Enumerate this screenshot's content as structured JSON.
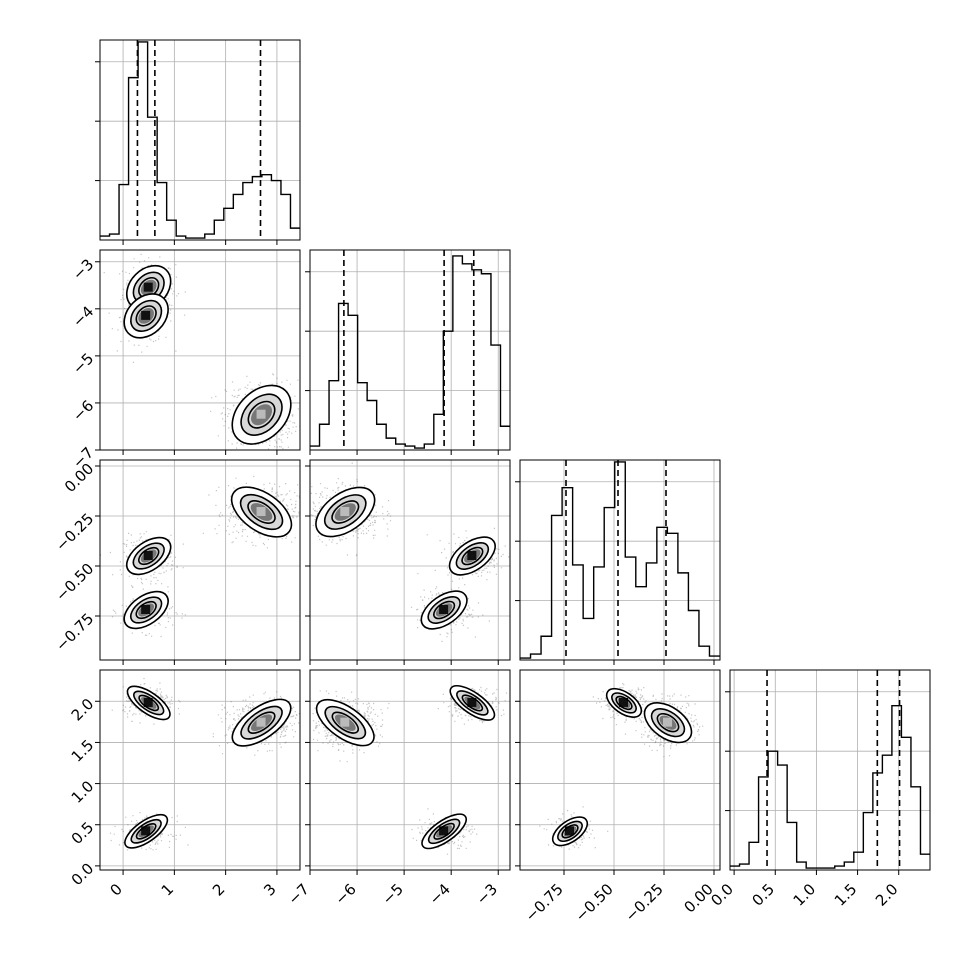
{
  "chart_data": {
    "type": "corner",
    "parameters": [
      {
        "range": [
          -0.45,
          3.45
        ],
        "ticks": [
          "0",
          "1",
          "2",
          "3"
        ],
        "tick_values": [
          0,
          1,
          2,
          3
        ],
        "quantiles": [
          0.28,
          0.62,
          2.68
        ]
      },
      {
        "range": [
          -7.0,
          -2.75
        ],
        "ticks": [
          "−7",
          "−6",
          "−5",
          "−4",
          "−3"
        ],
        "tick_values": [
          -7,
          -6,
          -5,
          -4,
          -3
        ],
        "quantiles": [
          -6.28,
          -4.15,
          -3.52
        ]
      },
      {
        "range": [
          -0.97,
          0.03
        ],
        "ticks": [
          "−0.75",
          "−0.50",
          "−0.25",
          "0.00"
        ],
        "tick_values": [
          -0.75,
          -0.5,
          -0.25,
          0.0
        ],
        "quantiles": [
          -0.74,
          -0.48,
          -0.24
        ]
      },
      {
        "range": [
          -0.05,
          2.38
        ],
        "ticks": [
          "0.0",
          "0.5",
          "1.0",
          "1.5",
          "2.0"
        ],
        "tick_values": [
          0,
          0.5,
          1.0,
          1.5,
          2.0
        ],
        "quantiles": [
          0.4,
          1.74,
          2.01
        ]
      }
    ],
    "histograms": [
      [
        0.02,
        0.03,
        0.28,
        0.82,
        1.0,
        0.62,
        0.29,
        0.1,
        0.02,
        0.01,
        0.01,
        0.03,
        0.1,
        0.16,
        0.23,
        0.29,
        0.32,
        0.33,
        0.3,
        0.23,
        0.06
      ],
      [
        0.02,
        0.13,
        0.35,
        0.74,
        0.68,
        0.34,
        0.25,
        0.13,
        0.06,
        0.03,
        0.02,
        0.01,
        0.03,
        0.18,
        0.6,
        0.98,
        0.94,
        0.91,
        0.89,
        0.53,
        0.12
      ],
      [
        0.01,
        0.03,
        0.12,
        0.73,
        0.87,
        0.48,
        0.21,
        0.47,
        0.77,
        1.0,
        0.52,
        0.37,
        0.49,
        0.67,
        0.64,
        0.44,
        0.25,
        0.07,
        0.02
      ],
      [
        0.02,
        0.03,
        0.14,
        0.47,
        0.6,
        0.53,
        0.24,
        0.04,
        0.01,
        0.01,
        0.01,
        0.02,
        0.04,
        0.09,
        0.29,
        0.49,
        0.58,
        0.83,
        0.67,
        0.42,
        0.08
      ]
    ],
    "hist_ylim": [
      0,
      1.01
    ],
    "clusters": [
      {
        "center": [
          0.5,
          -3.55,
          -0.45,
          1.98
        ],
        "sd": [
          0.22,
          0.25,
          0.045,
          0.08
        ],
        "weight": 0.27
      },
      {
        "center": [
          0.45,
          -4.15,
          -0.72,
          0.42
        ],
        "sd": [
          0.22,
          0.25,
          0.045,
          0.08
        ],
        "weight": 0.23
      },
      {
        "center": [
          2.7,
          -6.25,
          -0.23,
          1.74
        ],
        "sd": [
          0.3,
          0.32,
          0.06,
          0.12
        ],
        "weight": 0.5
      }
    ],
    "contour_scales": [
      1.0,
      1.55,
      2.1
    ],
    "grid": true
  }
}
